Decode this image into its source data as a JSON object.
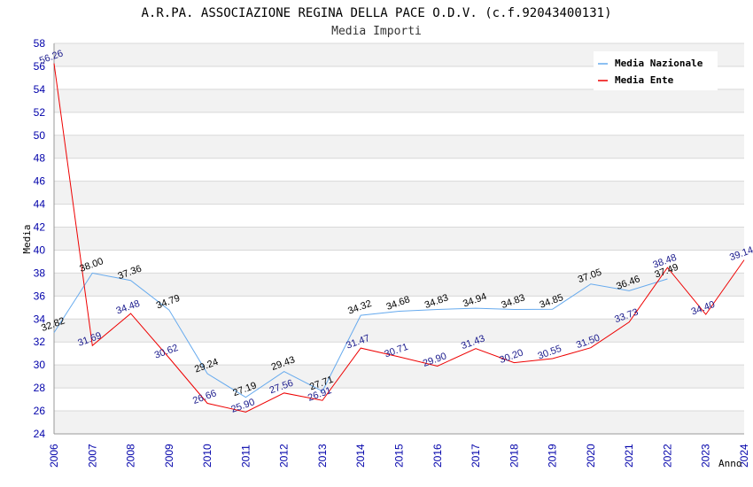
{
  "chart_data": {
    "type": "line",
    "title": "A.R.PA. ASSOCIAZIONE REGINA DELLA PACE O.D.V. (c.f.92043400131)",
    "subtitle": "Media Importi",
    "xlabel": "Anno",
    "ylabel": "Media",
    "ylim": [
      24,
      58
    ],
    "yticks": [
      "24",
      "26",
      "28",
      "30",
      "32",
      "34",
      "36",
      "38",
      "40",
      "42",
      "44",
      "46",
      "48",
      "50",
      "52",
      "54",
      "56",
      "58"
    ],
    "categories": [
      "2006",
      "2007",
      "2008",
      "2009",
      "2010",
      "2011",
      "2012",
      "2013",
      "2014",
      "2015",
      "2016",
      "2017",
      "2018",
      "2019",
      "2020",
      "2021",
      "2022",
      "2023",
      "2024"
    ],
    "grid": true,
    "legend_position": "top-right",
    "series": [
      {
        "name": "Media Nazionale",
        "color": "#66aaee",
        "values": [
          32.82,
          38.0,
          37.36,
          34.79,
          29.24,
          27.19,
          29.43,
          27.71,
          34.32,
          34.68,
          34.83,
          34.94,
          34.83,
          34.85,
          37.05,
          36.46,
          37.49,
          null,
          null
        ],
        "labels": [
          "32.82",
          "38.00",
          "37.36",
          "34.79",
          "29.24",
          "27.19",
          "29.43",
          "27.71",
          "34.32",
          "34.68",
          "34.83",
          "34.94",
          "34.83",
          "34.85",
          "37.05",
          "36.46",
          "37.49",
          null,
          null
        ]
      },
      {
        "name": "Media Ente",
        "color": "#ee0000",
        "values": [
          56.26,
          31.69,
          34.48,
          30.62,
          26.66,
          25.9,
          27.56,
          26.91,
          31.47,
          30.71,
          29.9,
          31.43,
          30.2,
          30.55,
          31.5,
          33.73,
          38.48,
          34.4,
          39.14
        ],
        "labels": [
          "56.26",
          "31.69",
          "34.48",
          "30.62",
          "26.66",
          "25.90",
          "27.56",
          "26.91",
          "31.47",
          "30.71",
          "29.90",
          "31.43",
          "30.20",
          "30.55",
          "31.50",
          "33.73",
          "38.48",
          "34.40",
          "39.14"
        ]
      }
    ]
  }
}
